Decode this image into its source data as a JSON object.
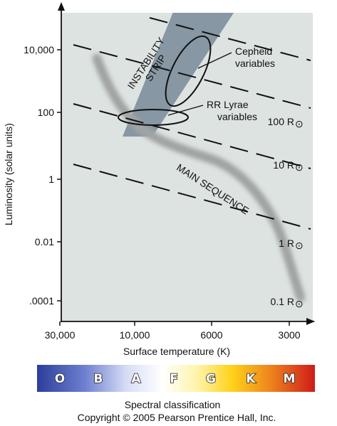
{
  "diagram": {
    "y_axis": {
      "title": "Luminosity (solar units)",
      "ticks": [
        "10,000",
        "100",
        "1",
        "0.01",
        ".0001"
      ]
    },
    "x_axis": {
      "title": "Surface temperature (K)",
      "ticks": [
        "30,000",
        "10,000",
        "6000",
        "3000"
      ]
    },
    "regions": {
      "instability_strip": "INSTABILITY STRIP",
      "main_sequence": "MAIN SEQUENCE"
    },
    "annotations": {
      "cepheid": [
        "Cepheid",
        "variables"
      ],
      "rr_lyrae": [
        "RR Lyrae",
        "variables"
      ]
    },
    "radius_lines": [
      {
        "label": "100 R",
        "symbol": "⊙"
      },
      {
        "label": "10 R",
        "symbol": "⊙"
      },
      {
        "label": "1 R",
        "symbol": "⊙"
      },
      {
        "label": "0.1 R",
        "symbol": "⊙"
      }
    ],
    "spectral_bar": {
      "classes": [
        "O",
        "B",
        "A",
        "F",
        "G",
        "K",
        "M"
      ],
      "title": "Spectral classification"
    },
    "copyright": "Copyright © 2005 Pearson Prentice Hall, Inc.",
    "colors": {
      "plot_background": "#dde3e1",
      "instability_strip": "#8797a3",
      "main_sequence": "#a9a9a9",
      "spectrum": [
        "#2c3e9a",
        "#9aa8d8",
        "#ffffff",
        "#fff6b0",
        "#ffd21a",
        "#f08a1c",
        "#cf1b1b"
      ]
    }
  }
}
